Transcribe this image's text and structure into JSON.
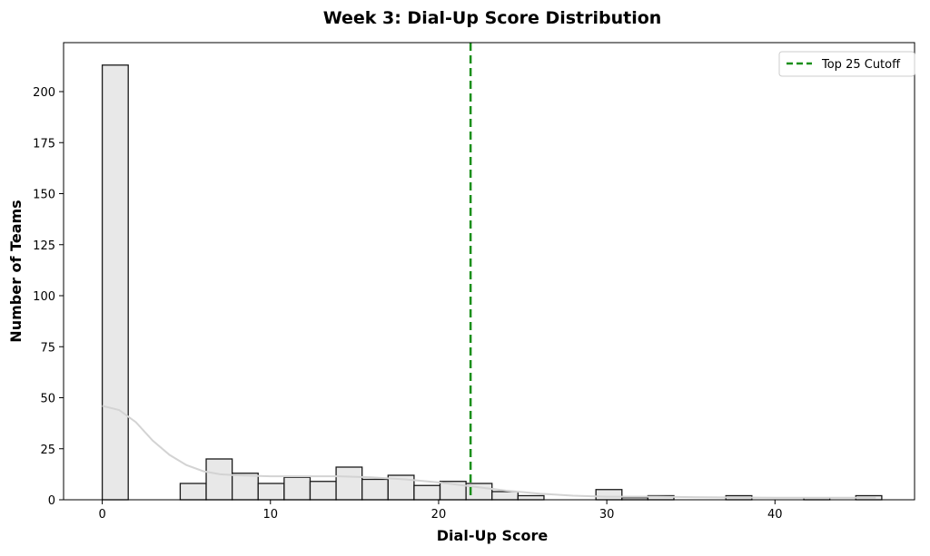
{
  "chart_data": {
    "type": "bar",
    "title": "Week 3: Dial-Up Score Distribution",
    "xlabel": "Dial-Up Score",
    "ylabel": "Number of Teams",
    "xlim": [
      -2.3,
      48.3
    ],
    "ylim": [
      0,
      224
    ],
    "xticks": [
      0,
      10,
      20,
      30,
      40
    ],
    "yticks": [
      0,
      25,
      50,
      75,
      100,
      125,
      150,
      175,
      200
    ],
    "grid": false,
    "bin_start": 0,
    "bin_width": 1.545,
    "counts": [
      213,
      0,
      0,
      8,
      20,
      13,
      8,
      11,
      9,
      16,
      10,
      12,
      7,
      9,
      8,
      4,
      2,
      0,
      0,
      5,
      1,
      2,
      0,
      0,
      2,
      0,
      0,
      1,
      0,
      2
    ],
    "kde": {
      "x": [
        0,
        1,
        2,
        3,
        4,
        5,
        6,
        7,
        8,
        10,
        12,
        14,
        16,
        18,
        20,
        22,
        24,
        26,
        28,
        30,
        33,
        36,
        40,
        43,
        46
      ],
      "y": [
        46,
        44,
        38,
        29,
        22,
        17,
        14,
        12.5,
        12,
        11.5,
        11.5,
        11.5,
        11,
        10,
        8.5,
        6.5,
        4.5,
        3,
        2,
        1.5,
        1.5,
        1.2,
        1,
        1,
        1
      ]
    },
    "cutoff": {
      "x": 21.9,
      "label": "Top 25 Cutoff"
    },
    "legend_position": "top-right",
    "colors": {
      "bar_fill": "#e8e8e8",
      "bar_edge": "#1a1a1a",
      "kde": "#d3d3d3",
      "cutoff": "#1a8f1a"
    }
  }
}
